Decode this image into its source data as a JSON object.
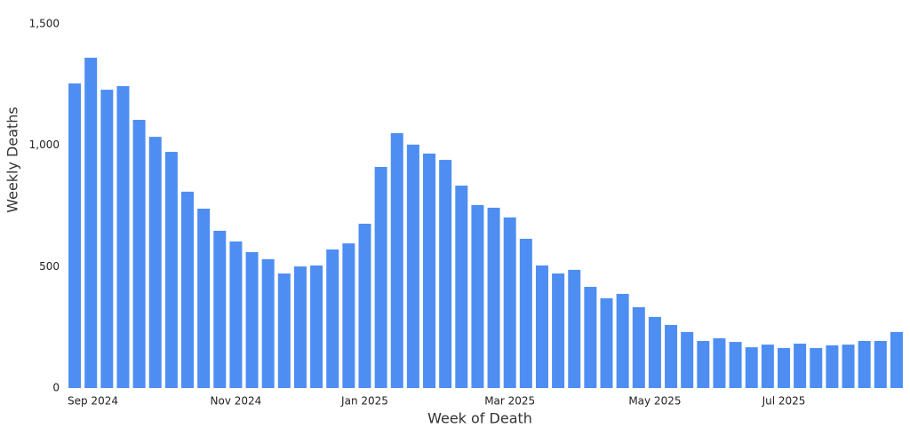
{
  "chart_data": {
    "type": "bar",
    "x_label": "Week of Death",
    "y_label": "Weekly Deaths",
    "categories": [
      "Sep 2024",
      null,
      null,
      null,
      null,
      null,
      null,
      null,
      null,
      null,
      "Nov 2024",
      null,
      null,
      null,
      null,
      null,
      null,
      null,
      "Jan 2025",
      null,
      null,
      null,
      null,
      null,
      null,
      null,
      null,
      "Mar 2025",
      null,
      null,
      null,
      null,
      null,
      null,
      null,
      null,
      "May 2025",
      null,
      null,
      null,
      null,
      null,
      null,
      null,
      "Jul 2025",
      null,
      null,
      null,
      null,
      null,
      null,
      null
    ],
    "values": [
      1255,
      1361,
      1229,
      1244,
      1105,
      1035,
      973,
      809,
      739,
      648,
      604,
      560,
      531,
      472,
      501,
      505,
      571,
      596,
      677,
      911,
      1050,
      1003,
      966,
      940,
      834,
      754,
      743,
      703,
      615,
      505,
      472,
      487,
      417,
      370,
      388,
      333,
      293,
      260,
      231,
      194,
      205,
      190,
      168,
      179,
      165,
      183,
      165,
      176,
      179,
      194,
      194,
      231
    ],
    "color": "#4e8ef2",
    "ylim": [
      0,
      1500
    ],
    "yticks": [
      0,
      500,
      {
        "value": 1000,
        "label": "1,000"
      },
      {
        "value": 1500,
        "label": "1,500"
      }
    ],
    "grid": true
  }
}
